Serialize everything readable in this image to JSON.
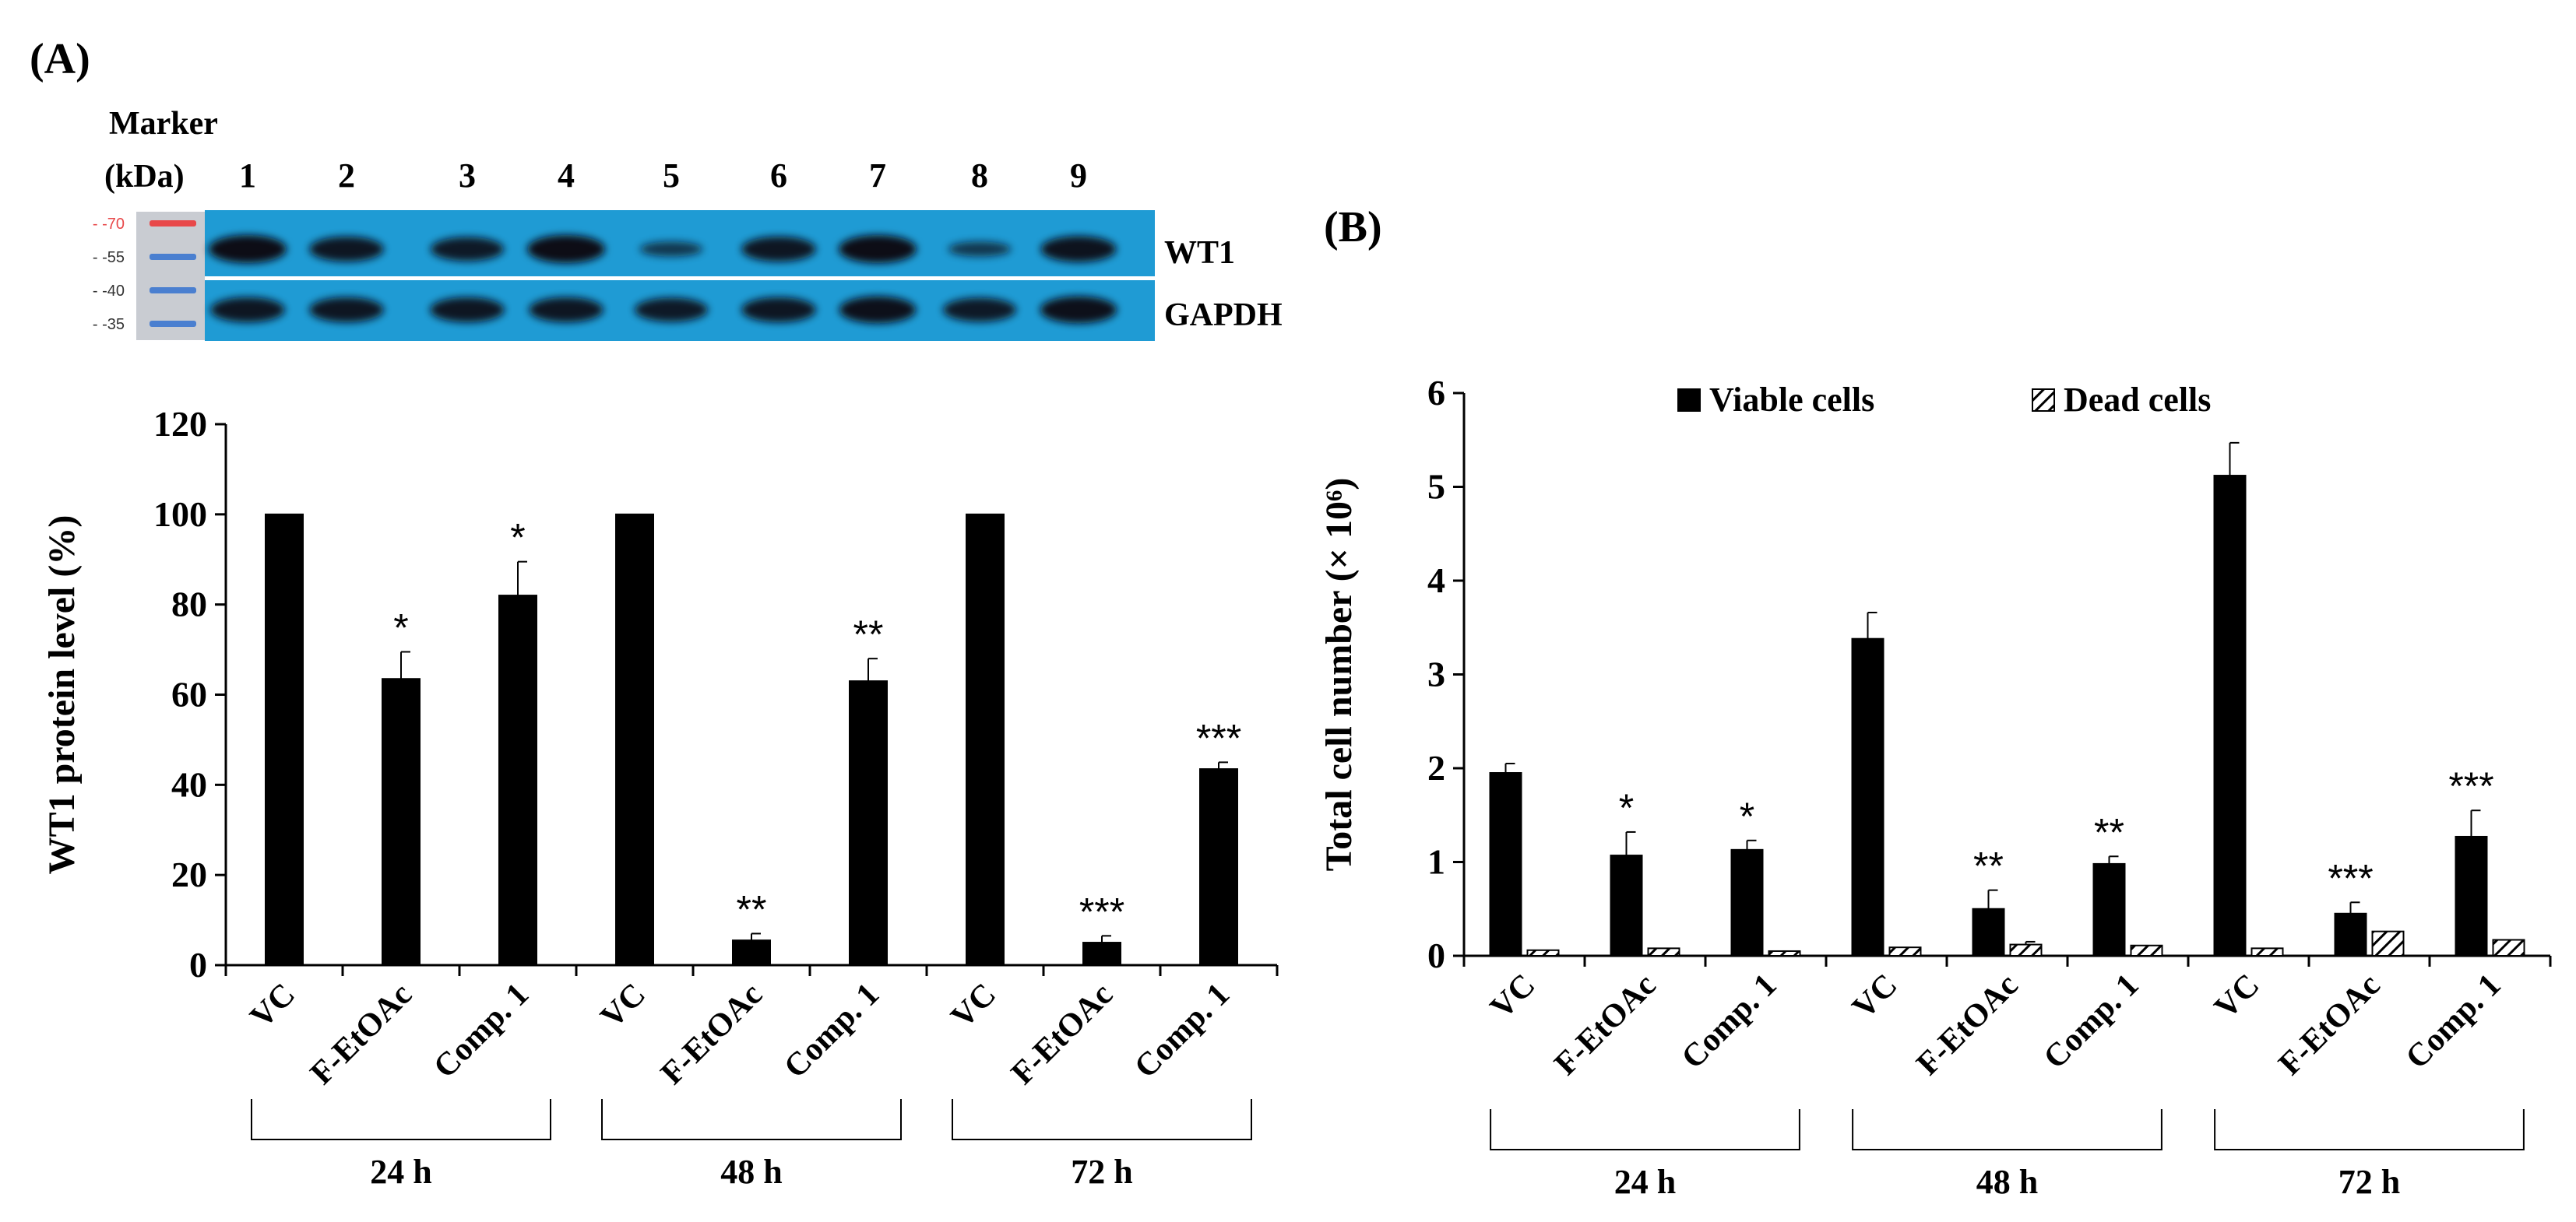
{
  "panel_labels": {
    "a": "(A)",
    "b": "(B)"
  },
  "blot": {
    "marker_title": "Marker",
    "marker_unit": "(kDa)",
    "lanes": [
      "1",
      "2",
      "3",
      "4",
      "5",
      "6",
      "7",
      "8",
      "9"
    ],
    "marker_bands": [
      "70",
      "55",
      "40",
      "35"
    ],
    "marker_colors": [
      "#e8484a",
      "#4a7fd0",
      "#4a7fd0",
      "#4a7fd0"
    ],
    "row_labels": [
      "WT1",
      "GAPDH"
    ],
    "intensity": {
      "WT1": [
        1.0,
        0.85,
        0.8,
        1.0,
        0.35,
        0.85,
        1.0,
        0.35,
        0.9
      ],
      "GAPDH": [
        0.85,
        0.85,
        0.85,
        0.85,
        0.8,
        0.85,
        0.95,
        0.8,
        0.95
      ]
    }
  },
  "chart_data": [
    {
      "type": "bar",
      "ylabel": "WT1  protein level (%)",
      "ylim": [
        0,
        120
      ],
      "yticks": [
        "0",
        "20",
        "40",
        "60",
        "80",
        "100",
        "120"
      ],
      "categories": [
        "VC",
        "F-EtOAc",
        "Comp. 1",
        "VC",
        "F-EtOAc",
        "Comp. 1",
        "VC",
        "F-EtOAc",
        "Comp. 1"
      ],
      "groups": [
        "24 h",
        "48 h",
        "72 h"
      ],
      "series": [
        {
          "name": "WT1 protein level",
          "color": "#000000",
          "values": [
            100,
            63.5,
            82,
            100,
            5.5,
            63,
            100,
            5,
            43.5
          ],
          "errors": [
            0,
            6,
            7.5,
            0,
            1.5,
            5,
            0,
            1.5,
            1.5
          ]
        }
      ],
      "significance": [
        "",
        "*",
        "*",
        "",
        "**",
        "**",
        "",
        "***",
        "***"
      ]
    },
    {
      "type": "bar",
      "ylabel": "Total cell number (× 10⁶)",
      "ylim": [
        0,
        6
      ],
      "yticks": [
        "0",
        "1",
        "2",
        "3",
        "4",
        "5",
        "6"
      ],
      "categories": [
        "VC",
        "F-EtOAc",
        "Comp. 1",
        "VC",
        "F-EtOAc",
        "Comp. 1",
        "VC",
        "F-EtOAc",
        "Comp. 1"
      ],
      "groups": [
        "24 h",
        "48 h",
        "72 h"
      ],
      "series": [
        {
          "name": "Viable cells",
          "color": "#000000",
          "values": [
            1.95,
            1.07,
            1.13,
            3.38,
            0.5,
            0.98,
            5.12,
            0.45,
            1.27
          ],
          "errors": [
            0.1,
            0.25,
            0.1,
            0.28,
            0.2,
            0.08,
            0.35,
            0.12,
            0.28
          ]
        },
        {
          "name": "Dead cells",
          "color": "#ffffff",
          "pattern": "hatched",
          "values": [
            0.06,
            0.08,
            0.05,
            0.09,
            0.12,
            0.11,
            0.08,
            0.26,
            0.17
          ],
          "errors": [
            0,
            0,
            0,
            0,
            0.03,
            0,
            0,
            0,
            0
          ]
        }
      ],
      "significance": [
        "",
        "*",
        "*",
        "",
        "**",
        "**",
        "",
        "***",
        "***"
      ]
    }
  ]
}
